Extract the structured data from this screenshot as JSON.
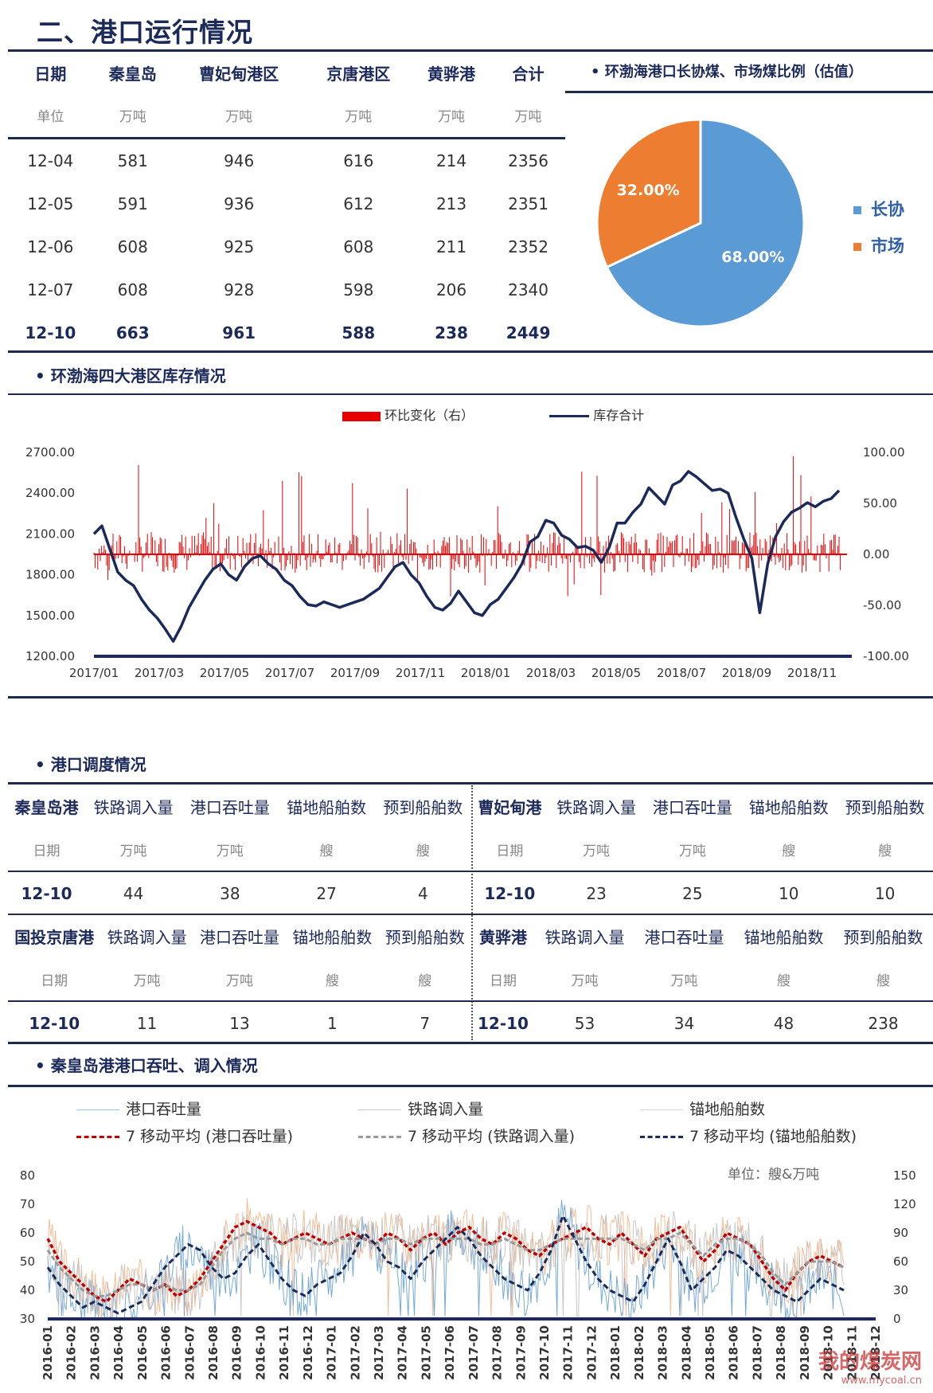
{
  "page_title": "二、港口运行情况",
  "inventory_table": {
    "headers": [
      "日期",
      "秦皇岛",
      "曹妃甸港区",
      "京唐港区",
      "黄骅港",
      "合计"
    ],
    "units": [
      "单位",
      "万吨",
      "万吨",
      "万吨",
      "万吨",
      "万吨"
    ],
    "rows": [
      [
        "12-04",
        "581",
        "946",
        "616",
        "214",
        "2356"
      ],
      [
        "12-05",
        "591",
        "936",
        "612",
        "213",
        "2351"
      ],
      [
        "12-06",
        "608",
        "925",
        "608",
        "211",
        "2352"
      ],
      [
        "12-07",
        "608",
        "928",
        "598",
        "206",
        "2340"
      ],
      [
        "12-10",
        "663",
        "961",
        "588",
        "238",
        "2449"
      ]
    ]
  },
  "pie": {
    "title": "环渤海港口长协煤、市场煤比例（估值）",
    "chart_data": {
      "type": "pie",
      "slices": [
        {
          "label": "长协",
          "value": 68.0,
          "text": "68.00%",
          "color": "#5b9bd5"
        },
        {
          "label": "市场",
          "value": 32.0,
          "text": "32.00%",
          "color": "#ed7d31"
        }
      ]
    }
  },
  "stock_chart": {
    "section_title": "环渤海四大港区库存情况",
    "legend": [
      "环比变化（右）",
      "库存合计"
    ],
    "chart_data": {
      "type": "line",
      "left_ticks": [
        "2700.00",
        "2400.00",
        "2100.00",
        "1800.00",
        "1500.00",
        "1200.00"
      ],
      "right_ticks": [
        "100.00",
        "50.00",
        "0.00",
        "-50.00",
        "-100.00"
      ],
      "x_ticks": [
        "2017/01",
        "2017/03",
        "2017/05",
        "2017/07",
        "2017/09",
        "2017/11",
        "2018/01",
        "2018/03",
        "2018/05",
        "2018/07",
        "2018/09",
        "2018/11"
      ],
      "ylim_left": [
        1200,
        2700
      ],
      "ylim_right": [
        -100,
        100
      ],
      "series": [
        {
          "name": "库存合计",
          "color": "#1c2a5a",
          "values": [
            2100,
            2160,
            1990,
            1820,
            1760,
            1720,
            1620,
            1540,
            1480,
            1400,
            1310,
            1420,
            1560,
            1660,
            1760,
            1840,
            1880,
            1800,
            1760,
            1860,
            1920,
            1940,
            1880,
            1840,
            1760,
            1720,
            1640,
            1580,
            1570,
            1600,
            1580,
            1560,
            1580,
            1600,
            1620,
            1660,
            1700,
            1780,
            1860,
            1890,
            1800,
            1740,
            1640,
            1560,
            1540,
            1590,
            1680,
            1600,
            1520,
            1500,
            1580,
            1620,
            1700,
            1780,
            1880,
            2040,
            2080,
            2200,
            2180,
            2090,
            2060,
            2000,
            2010,
            1980,
            1890,
            2000,
            2180,
            2180,
            2260,
            2320,
            2440,
            2380,
            2320,
            2460,
            2490,
            2560,
            2520,
            2470,
            2420,
            2430,
            2400,
            2220,
            2060,
            1920,
            1520,
            1880,
            2080,
            2190,
            2260,
            2290,
            2330,
            2300,
            2340,
            2360,
            2420
          ]
        },
        {
          "name": "环比变化（右）",
          "color": "#e60000"
        }
      ]
    }
  },
  "dispatch": {
    "section_title": "港口调度情况",
    "blocks": [
      {
        "port": "秦皇岛港",
        "cols": [
          "铁路调入量",
          "港口吞吐量",
          "锚地船舶数",
          "预到船舶数"
        ],
        "units": [
          "日期",
          "万吨",
          "万吨",
          "艘",
          "艘"
        ],
        "values": [
          "12-10",
          "44",
          "38",
          "27",
          "4"
        ]
      },
      {
        "port": "曹妃甸港",
        "cols": [
          "铁路调入量",
          "港口吞吐量",
          "锚地船舶数",
          "预到船舶数"
        ],
        "units": [
          "日期",
          "万吨",
          "万吨",
          "艘",
          "艘"
        ],
        "values": [
          "12-10",
          "23",
          "25",
          "10",
          "10"
        ]
      },
      {
        "port": "国投京唐港",
        "cols": [
          "铁路调入量",
          "港口吞吐量",
          "锚地船舶数",
          "预到船舶数"
        ],
        "units": [
          "日期",
          "万吨",
          "万吨",
          "艘",
          "艘"
        ],
        "values": [
          "12-10",
          "11",
          "13",
          "1",
          "7"
        ]
      },
      {
        "port": "黄骅港",
        "cols": [
          "铁路调入量",
          "港口吞吐量",
          "锚地船舶数",
          "预到船舶数"
        ],
        "units": [
          "日期",
          "万吨",
          "万吨",
          "艘",
          "艘"
        ],
        "values": [
          "12-10",
          "53",
          "34",
          "48",
          "238"
        ]
      }
    ]
  },
  "qhd_chart": {
    "section_title": "秦皇岛港港口吞吐、调入情况",
    "legend": [
      "港口吞吐量",
      "铁路调入量",
      "锚地船舶数",
      "7 移动平均 (港口吞吐量)",
      "7 移动平均 (铁路调入量)",
      "7 移动平均 (锚地船舶数)"
    ],
    "unit_note": "单位：艘&万吨",
    "chart_data": {
      "type": "line",
      "left_ticks": [
        "80",
        "70",
        "60",
        "50",
        "40",
        "30"
      ],
      "right_ticks": [
        "150",
        "120",
        "90",
        "60",
        "30",
        "0"
      ],
      "x_ticks": [
        "2016-01",
        "2016-02",
        "2016-03",
        "2016-04",
        "2016-05",
        "2016-06",
        "2016-07",
        "2016-08",
        "2016-09",
        "2016-10",
        "2016-11",
        "2016-12",
        "2017-01",
        "2017-02",
        "2017-03",
        "2017-04",
        "2017-05",
        "2017-06",
        "2017-07",
        "2017-08",
        "2017-09",
        "2017-10",
        "2017-11",
        "2017-12",
        "2018-01",
        "2018-02",
        "2018-03",
        "2018-04",
        "2018-05",
        "2018-06",
        "2018-07",
        "2018-08",
        "2018-09",
        "2018-10",
        "2018-11",
        "2018-12"
      ],
      "ylim_left": [
        30,
        80
      ],
      "ylim_right": [
        0,
        150
      ],
      "series": [
        {
          "name": "7 移动平均 (港口吞吐量)",
          "color": "#c00000",
          "values": [
            58,
            50,
            46,
            42,
            38,
            36,
            40,
            44,
            42,
            40,
            42,
            38,
            40,
            44,
            50,
            56,
            62,
            64,
            62,
            60,
            56,
            58,
            60,
            58,
            56,
            58,
            60,
            58,
            56,
            60,
            58,
            54,
            58,
            60,
            56,
            60,
            62,
            58,
            56,
            60,
            58,
            54,
            52,
            56,
            58,
            60,
            62,
            58,
            56,
            60,
            56,
            52,
            58,
            60,
            62,
            56,
            50,
            54,
            60,
            58,
            56,
            50,
            44,
            40,
            46,
            50,
            52,
            50,
            48
          ]
        },
        {
          "name": "7 移动平均 (铁路调入量)",
          "color": "#999999",
          "values": [
            54,
            48,
            44,
            40,
            38,
            38,
            40,
            42,
            42,
            40,
            42,
            40,
            40,
            42,
            48,
            54,
            58,
            60,
            58,
            58,
            56,
            58,
            58,
            56,
            56,
            58,
            58,
            58,
            56,
            58,
            58,
            56,
            58,
            58,
            58,
            58,
            58,
            56,
            56,
            58,
            56,
            54,
            54,
            56,
            58,
            58,
            58,
            58,
            58,
            58,
            56,
            54,
            58,
            58,
            60,
            56,
            52,
            56,
            58,
            58,
            56,
            52,
            46,
            42,
            46,
            50,
            50,
            50,
            48
          ]
        },
        {
          "name": "7 移动平均 (锚地船舶数)",
          "color": "#1c2a5a",
          "values": [
            48,
            42,
            38,
            34,
            36,
            34,
            32,
            34,
            36,
            42,
            48,
            52,
            56,
            54,
            48,
            44,
            46,
            52,
            56,
            50,
            44,
            40,
            38,
            42,
            44,
            46,
            52,
            60,
            56,
            50,
            48,
            44,
            50,
            54,
            58,
            62,
            58,
            52,
            48,
            44,
            42,
            40,
            46,
            54,
            66,
            58,
            50,
            44,
            40,
            38,
            36,
            42,
            50,
            58,
            50,
            40,
            44,
            48,
            54,
            52,
            48,
            44,
            40,
            38,
            36,
            40,
            44,
            42,
            40
          ]
        }
      ]
    }
  },
  "watermark": {
    "name": "我的煤炭网",
    "url": "www.mycoal.cn"
  }
}
